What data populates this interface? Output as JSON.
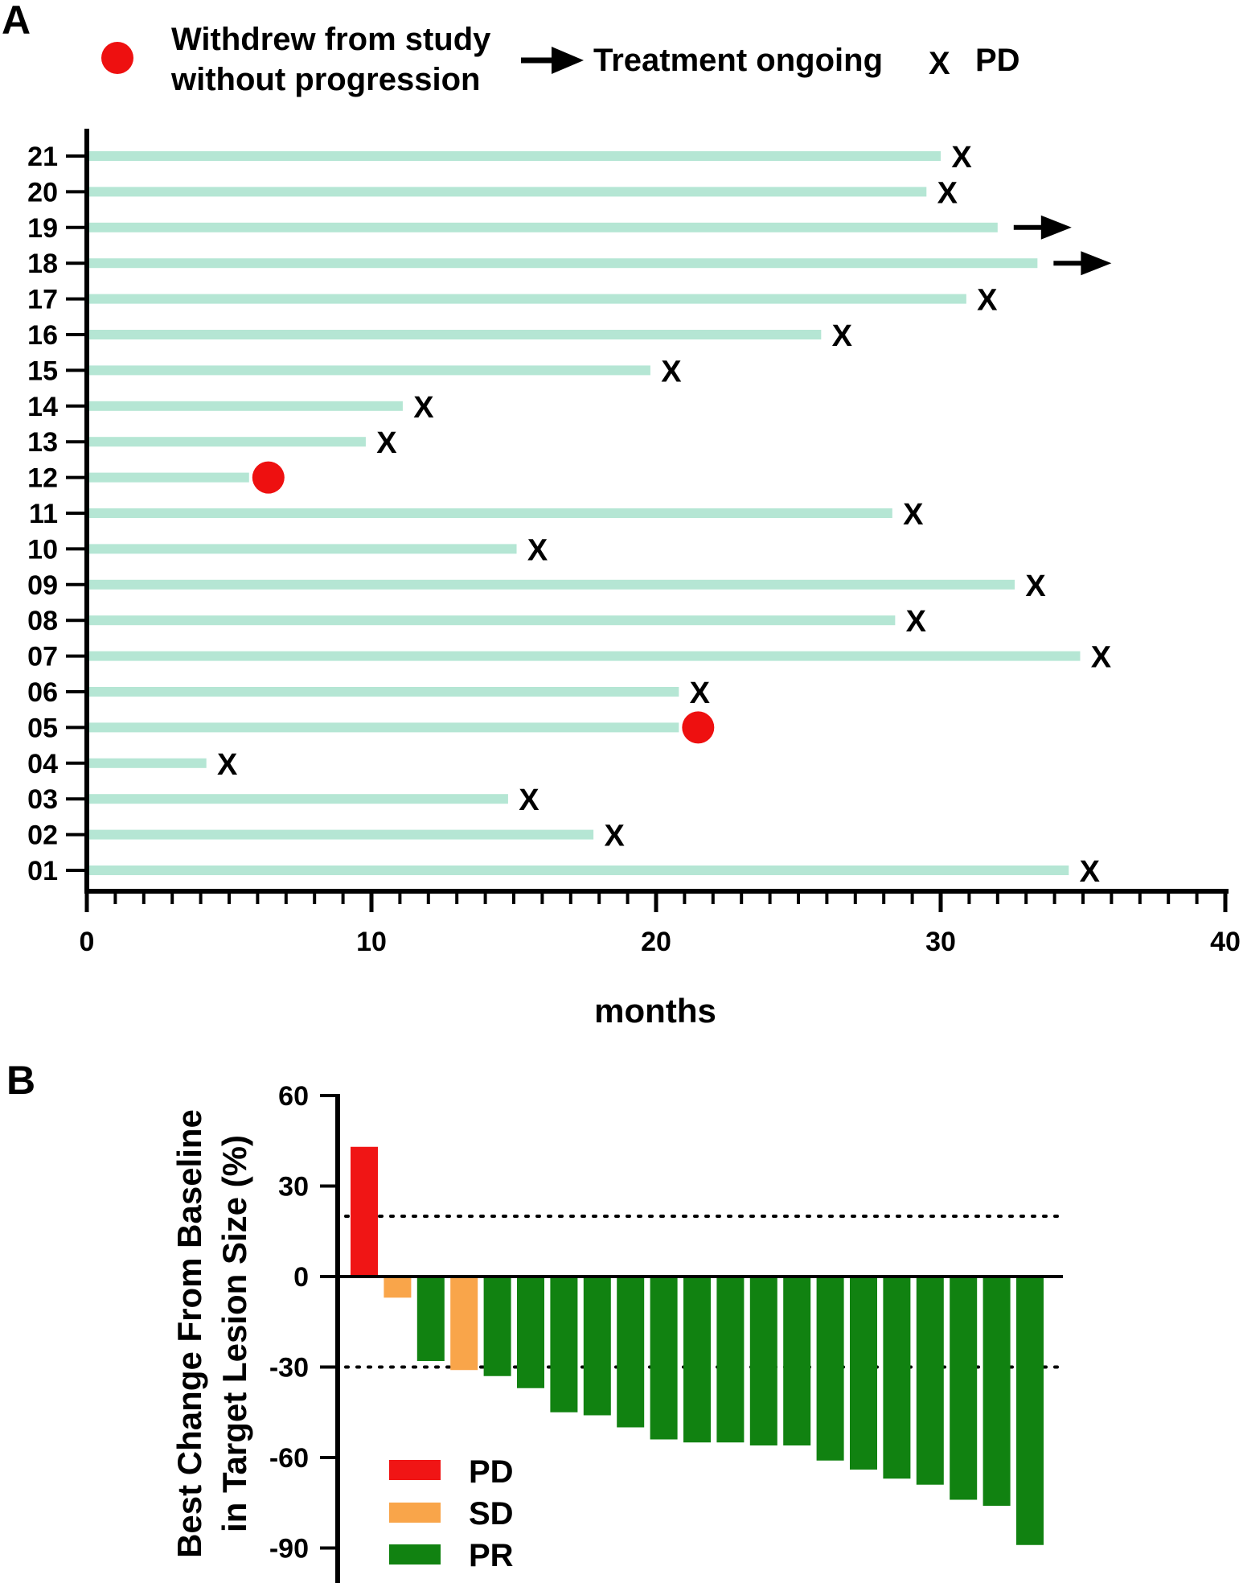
{
  "figure": {
    "panel_a_label": "A",
    "panel_b_label": "B"
  },
  "colors": {
    "bar_track": "#b5e6d4",
    "withdrew_marker": "#ee1010",
    "pd": "#f01515",
    "sd": "#f9a54a",
    "pr": "#118211",
    "axis": "#000000"
  },
  "chart_data": [
    {
      "type": "bar",
      "orientation": "horizontal",
      "title": "",
      "xlabel": "months",
      "ylabel": "",
      "xlim": [
        0,
        40
      ],
      "x_ticks": [
        "0",
        "10",
        "20",
        "30",
        "40"
      ],
      "legend": {
        "placement": "top",
        "entries": [
          {
            "marker": "circle",
            "label_line1": "Withdrew from study",
            "label_line2": "without progression"
          },
          {
            "marker": "arrow",
            "label": "Treatment ongoing"
          },
          {
            "marker": "x",
            "glyph": "X",
            "label": "PD"
          }
        ]
      },
      "patients": [
        {
          "id": "21",
          "months": 30.0,
          "end": "X"
        },
        {
          "id": "20",
          "months": 29.5,
          "end": "X"
        },
        {
          "id": "19",
          "months": 32.0,
          "end": "arrow"
        },
        {
          "id": "18",
          "months": 33.4,
          "end": "arrow"
        },
        {
          "id": "17",
          "months": 30.9,
          "end": "X"
        },
        {
          "id": "16",
          "months": 25.8,
          "end": "X"
        },
        {
          "id": "15",
          "months": 19.8,
          "end": "X"
        },
        {
          "id": "14",
          "months": 11.1,
          "end": "X"
        },
        {
          "id": "13",
          "months": 9.8,
          "end": "X"
        },
        {
          "id": "12",
          "months": 5.7,
          "end": "circle"
        },
        {
          "id": "11",
          "months": 28.3,
          "end": "X"
        },
        {
          "id": "10",
          "months": 15.1,
          "end": "X"
        },
        {
          "id": "09",
          "months": 32.6,
          "end": "X"
        },
        {
          "id": "08",
          "months": 28.4,
          "end": "X"
        },
        {
          "id": "07",
          "months": 34.9,
          "end": "X"
        },
        {
          "id": "06",
          "months": 20.8,
          "end": "X"
        },
        {
          "id": "05",
          "months": 20.8,
          "end": "circle"
        },
        {
          "id": "04",
          "months": 4.2,
          "end": "X"
        },
        {
          "id": "03",
          "months": 14.8,
          "end": "X"
        },
        {
          "id": "02",
          "months": 17.8,
          "end": "X"
        },
        {
          "id": "01",
          "months": 34.5,
          "end": "X"
        }
      ]
    },
    {
      "type": "bar",
      "orientation": "vertical",
      "title": "",
      "xlabel": "",
      "ylabel_line1": "Best Change From Baseline",
      "ylabel_line2": "in Target Lesion Size (%)",
      "ylim": [
        -100,
        60
      ],
      "y_ticks": [
        60,
        30,
        0,
        -30,
        -60,
        -90
      ],
      "y_tick_labels": [
        "60",
        "30",
        "0",
        "-30",
        "-60",
        "-90"
      ],
      "reference_lines": [
        20,
        -30
      ],
      "legend": {
        "placement": "bottom-left",
        "entries": [
          {
            "category": "PD",
            "label": "PD"
          },
          {
            "category": "SD",
            "label": "SD"
          },
          {
            "category": "PR",
            "label": "PR"
          }
        ]
      },
      "bars": [
        {
          "value": 43,
          "category": "PD"
        },
        {
          "value": -7,
          "category": "SD"
        },
        {
          "value": -28,
          "category": "PR"
        },
        {
          "value": -31,
          "category": "SD"
        },
        {
          "value": -33,
          "category": "PR"
        },
        {
          "value": -37,
          "category": "PR"
        },
        {
          "value": -45,
          "category": "PR"
        },
        {
          "value": -46,
          "category": "PR"
        },
        {
          "value": -50,
          "category": "PR"
        },
        {
          "value": -54,
          "category": "PR"
        },
        {
          "value": -55,
          "category": "PR"
        },
        {
          "value": -55,
          "category": "PR"
        },
        {
          "value": -56,
          "category": "PR"
        },
        {
          "value": -56,
          "category": "PR"
        },
        {
          "value": -61,
          "category": "PR"
        },
        {
          "value": -64,
          "category": "PR"
        },
        {
          "value": -67,
          "category": "PR"
        },
        {
          "value": -69,
          "category": "PR"
        },
        {
          "value": -74,
          "category": "PR"
        },
        {
          "value": -76,
          "category": "PR"
        },
        {
          "value": -89,
          "category": "PR"
        }
      ]
    }
  ]
}
